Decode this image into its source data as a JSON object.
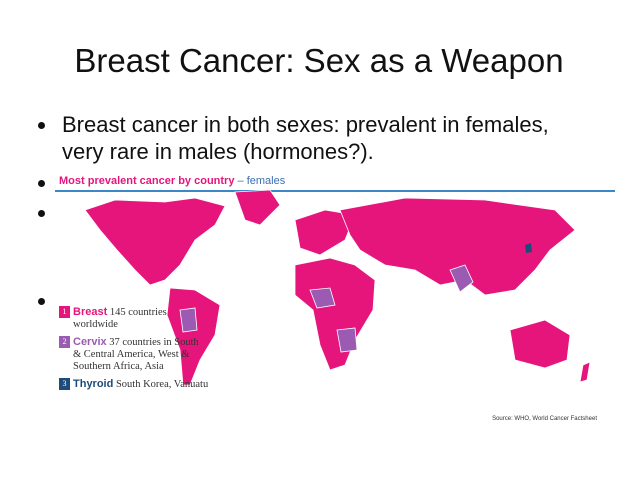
{
  "slide": {
    "title": "Breast Cancer: Sex as a Weapon",
    "bullet_lines": [
      "Breast cancer in both sexes: prevalent in females,",
      "very rare in males (hormones?)."
    ],
    "figure": {
      "title": "Most prevalent cancer by country",
      "title_suffix": "– females",
      "legend": [
        {
          "number": "1",
          "name": "Breast",
          "lines": [
            "145 countries",
            "worldwide"
          ]
        },
        {
          "number": "2",
          "name": "Cervix",
          "lines": [
            "37 countries in South",
            "& Central America, West &",
            "Southern Africa, Asia"
          ]
        },
        {
          "number": "3",
          "name": "Thyroid",
          "lines": [
            "South Korea, Vanuatu"
          ]
        }
      ],
      "source": "Source: WHO, World Cancer Factsheet"
    }
  }
}
